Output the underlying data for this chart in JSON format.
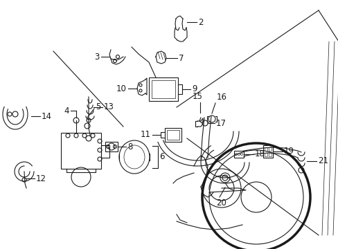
{
  "bg_color": "#ffffff",
  "line_color": "#1a1a1a",
  "fig_width": 4.89,
  "fig_height": 3.6,
  "dpi": 100,
  "components": {
    "label_fontsize": 8.5,
    "lw": 0.8
  }
}
